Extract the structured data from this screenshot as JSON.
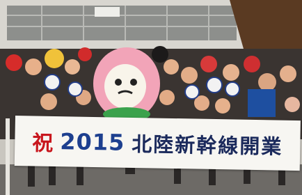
{
  "banner": {
    "mark": "祝",
    "year": "2015",
    "text": "北陸新幹線開業"
  }
}
